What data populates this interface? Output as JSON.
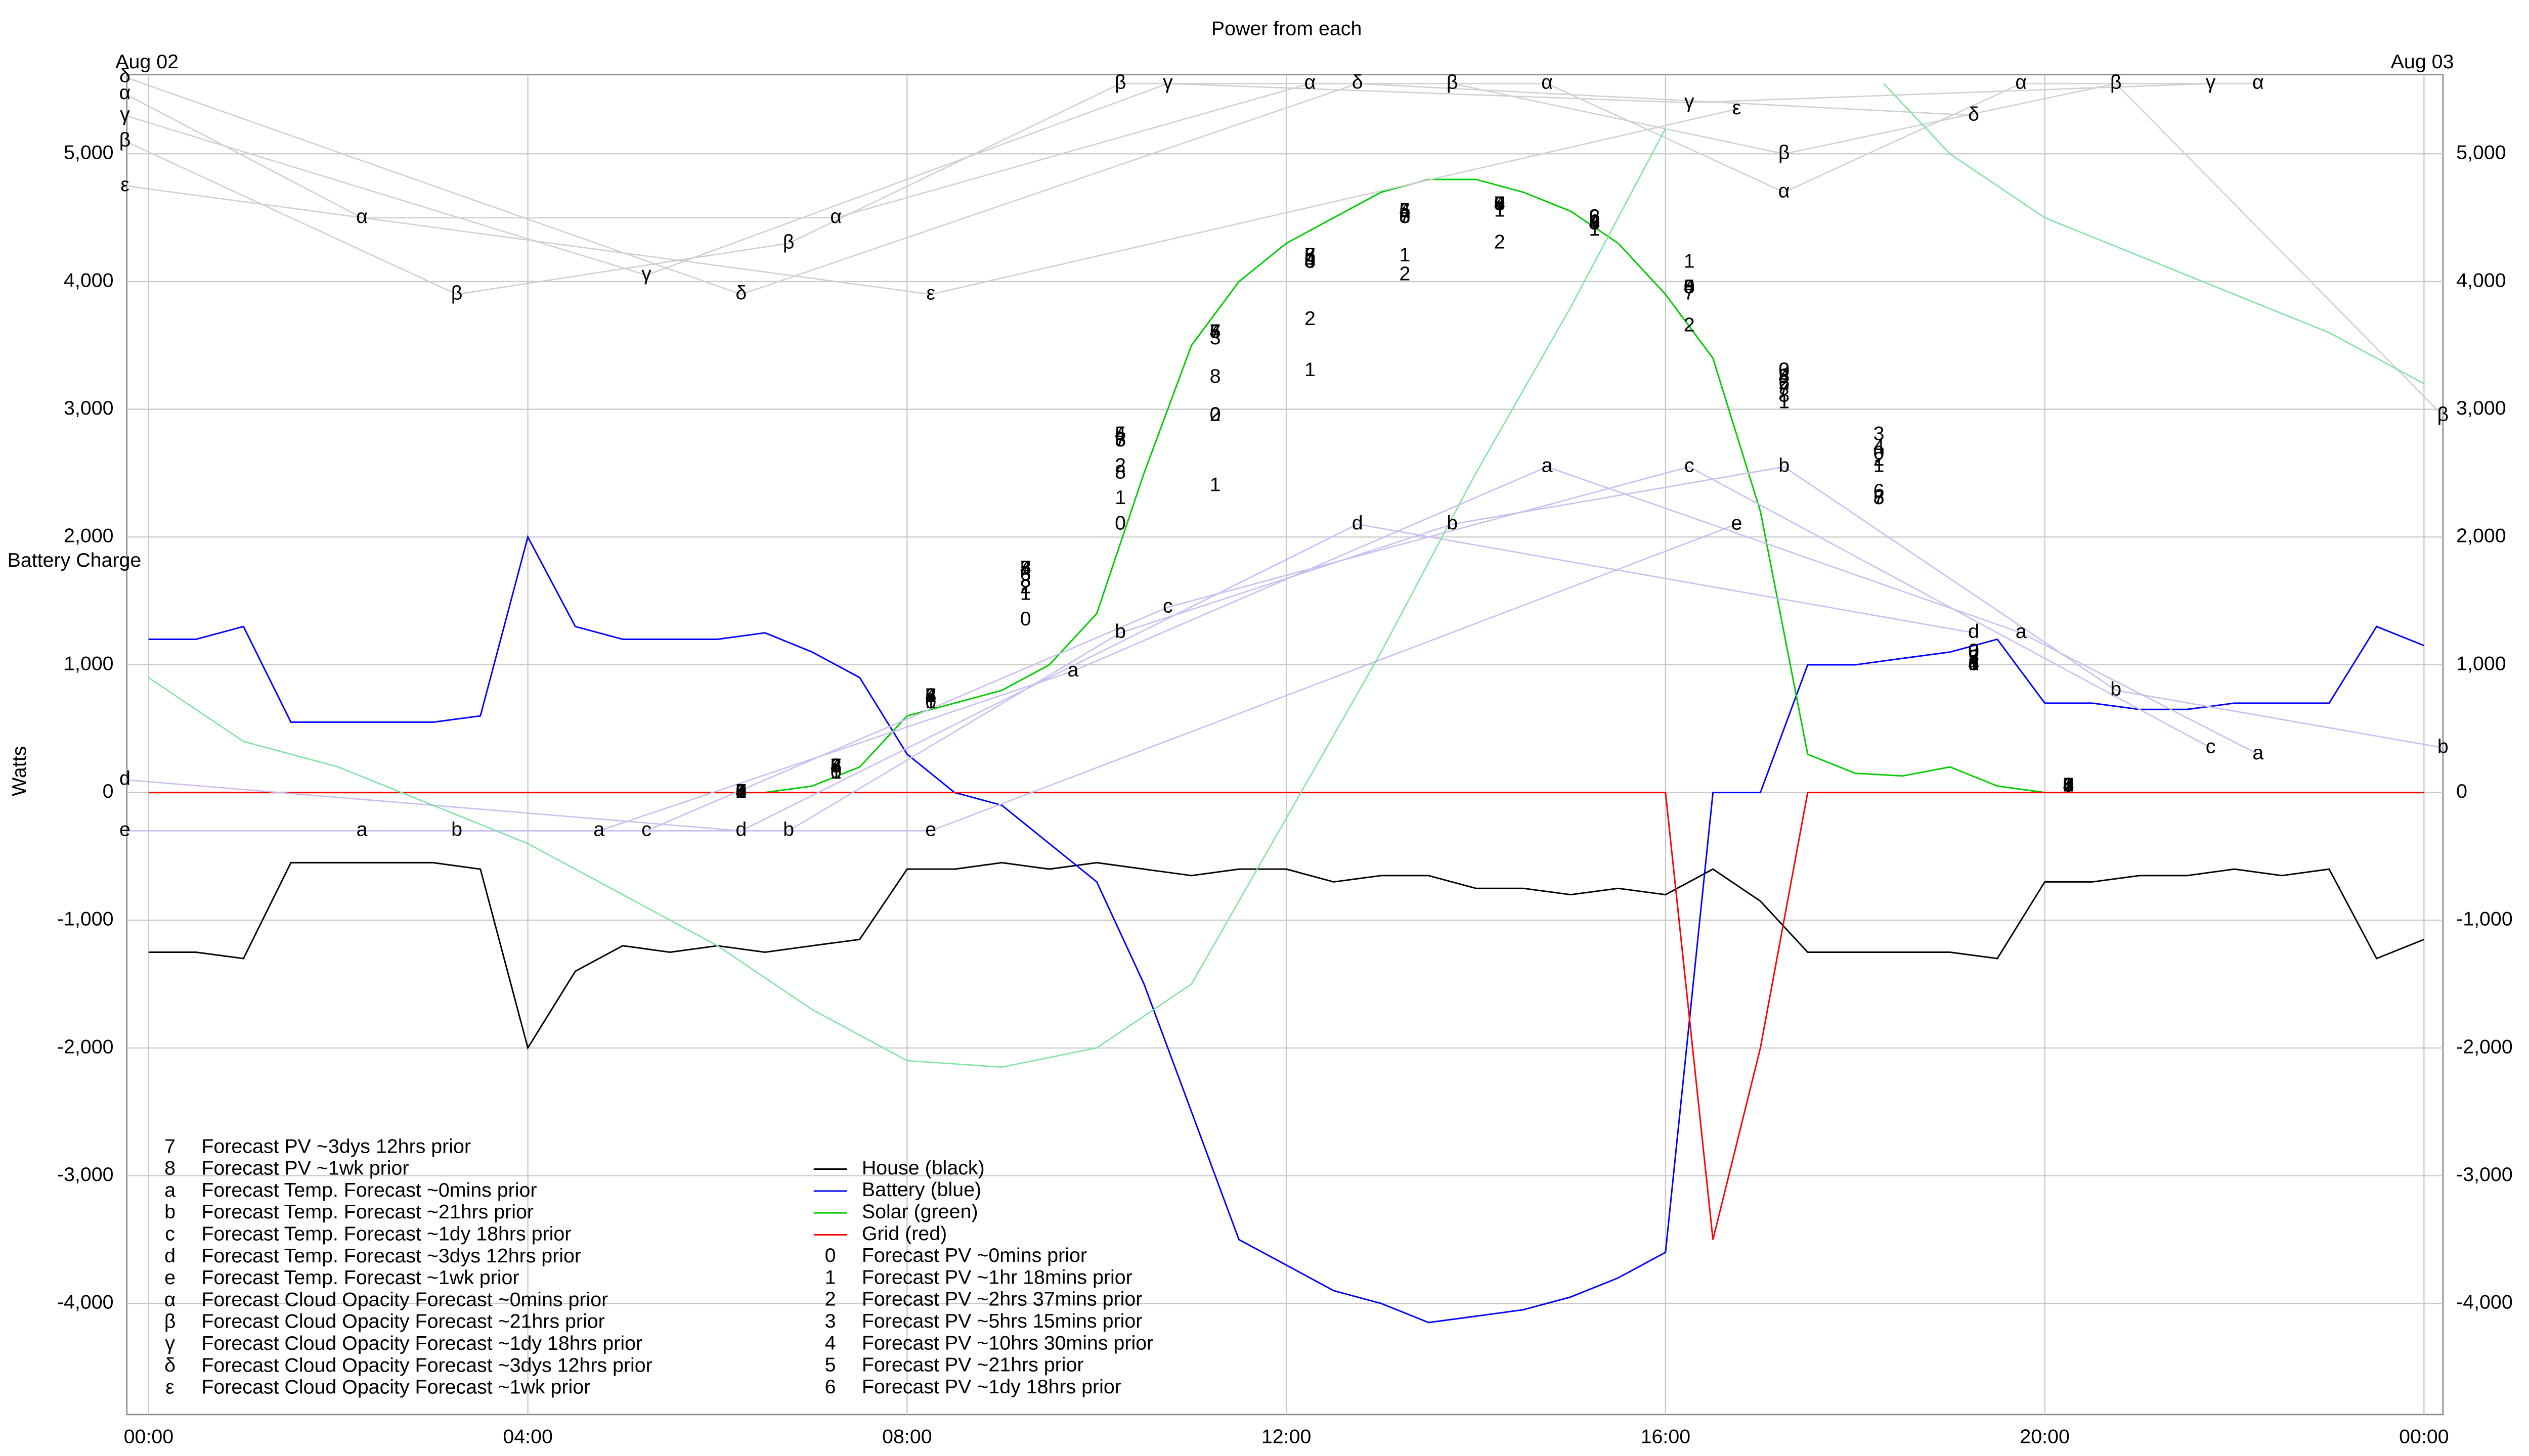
{
  "chart_data": {
    "type": "line",
    "title": "Power from each",
    "y_label": "Watts",
    "annotations": [
      {
        "text": "Aug 02",
        "x": 0
      },
      {
        "text": "Aug 03",
        "x": 24
      }
    ],
    "xlim": [
      -0.23,
      24.2
    ],
    "ylim": [
      -4870,
      5620
    ],
    "xticks": [
      {
        "value": 0,
        "label": "00:00"
      },
      {
        "value": 4,
        "label": "04:00"
      },
      {
        "value": 8,
        "label": "08:00"
      },
      {
        "value": 12,
        "label": "12:00"
      },
      {
        "value": 16,
        "label": "16:00"
      },
      {
        "value": 20,
        "label": "20:00"
      },
      {
        "value": 24,
        "label": "00:00"
      }
    ],
    "yticks": [
      {
        "value": -4000,
        "label": "-4,000"
      },
      {
        "value": -3000,
        "label": "-3,000"
      },
      {
        "value": -2000,
        "label": "-2,000"
      },
      {
        "value": -1000,
        "label": "-1,000"
      },
      0,
      {
        "value": 1000,
        "label": "1,000"
      },
      {
        "value": 2000,
        "label": "2,000"
      },
      {
        "value": 3000,
        "label": "3,000"
      },
      {
        "value": 4000,
        "label": "4,000"
      },
      {
        "value": 5000,
        "label": "5,000"
      }
    ],
    "grid": true,
    "x": [
      0,
      0.5,
      1,
      1.5,
      2,
      2.5,
      3,
      3.5,
      4,
      4.5,
      5,
      5.5,
      6,
      6.5,
      7,
      7.5,
      8,
      8.5,
      9,
      9.5,
      10,
      10.5,
      11,
      11.5,
      12,
      12.5,
      13,
      13.5,
      14,
      14.5,
      15,
      15.5,
      16,
      16.5,
      17,
      17.5,
      18,
      18.5,
      19,
      19.5,
      20,
      20.5,
      21,
      21.5,
      22,
      22.5,
      23,
      23.5,
      24
    ],
    "series": [
      {
        "name": "House (black)",
        "color": "#000000",
        "values": [
          -1250,
          -1250,
          -1300,
          -550,
          -550,
          -550,
          -550,
          -600,
          -2000,
          -1400,
          -1200,
          -1250,
          -1200,
          -1250,
          -1200,
          -1150,
          -600,
          -600,
          -550,
          -600,
          -550,
          -600,
          -650,
          -600,
          -600,
          -700,
          -650,
          -650,
          -750,
          -750,
          -800,
          -750,
          -800,
          -600,
          -850,
          -1250,
          -1250,
          -1250,
          -1250,
          -1300,
          -700,
          -700,
          -650,
          -650,
          -600,
          -650,
          -600,
          -1300,
          -1150
        ]
      },
      {
        "name": "Battery (blue)",
        "color": "#0000ff",
        "values": [
          1200,
          1200,
          1300,
          550,
          550,
          550,
          550,
          600,
          2000,
          1300,
          1200,
          1200,
          1200,
          1250,
          1100,
          900,
          300,
          0,
          -100,
          -400,
          -700,
          -1500,
          -2500,
          -3500,
          -3700,
          -3900,
          -4000,
          -4150,
          -4100,
          -4050,
          -3950,
          -3800,
          -3600,
          0,
          0,
          1000,
          1000,
          1050,
          1100,
          1200,
          700,
          700,
          650,
          650,
          700,
          700,
          700,
          1300,
          1150
        ]
      },
      {
        "name": "Solar (green)",
        "color": "#00cc00",
        "values": [
          0,
          0,
          0,
          0,
          0,
          0,
          0,
          0,
          0,
          0,
          0,
          0,
          0,
          0,
          50,
          200,
          600,
          700,
          800,
          1000,
          1400,
          2500,
          3500,
          4000,
          4300,
          4500,
          4700,
          4800,
          4800,
          4700,
          4550,
          4300,
          3900,
          3400,
          2200,
          300,
          150,
          130,
          200,
          50,
          0,
          0,
          0,
          0,
          0,
          0,
          0,
          0,
          0
        ]
      },
      {
        "name": "Grid (red)",
        "color": "#ff0000",
        "values": [
          0,
          0,
          0,
          0,
          0,
          0,
          0,
          0,
          0,
          0,
          0,
          0,
          0,
          0,
          0,
          0,
          0,
          0,
          0,
          0,
          0,
          0,
          0,
          0,
          0,
          0,
          0,
          0,
          0,
          0,
          0,
          0,
          0,
          -3500,
          -2000,
          0,
          0,
          0,
          0,
          0,
          0,
          0,
          0,
          0,
          0,
          0,
          0,
          0,
          0
        ]
      },
      {
        "name": "Forecast PV ~0mins prior",
        "marker": "0",
        "x": [
          6.25,
          7.25,
          8.25,
          9.25,
          10.25,
          11.25,
          12.25,
          13.25,
          14.25,
          15.25,
          16.25,
          17.25,
          18.25,
          19.25,
          20.25
        ],
        "values": [
          0,
          150,
          700,
          1350,
          2100,
          2950,
          4150,
          4500,
          4600,
          4450,
          3950,
          3300,
          2650,
          1100,
          50
        ]
      },
      {
        "name": "Forecast PV ~1hr 18mins prior",
        "marker": "1",
        "x": [
          6.25,
          7.25,
          8.25,
          9.25,
          10.25,
          11.25,
          12.25,
          13.25,
          14.25,
          15.25,
          16.25,
          17.25,
          18.25,
          19.25,
          20.25
        ],
        "values": [
          0,
          150,
          700,
          1550,
          2300,
          2400,
          3300,
          4200,
          4550,
          4400,
          4150,
          3050,
          2550,
          1000,
          50
        ]
      },
      {
        "name": "Forecast PV ~2hrs 37mins prior",
        "marker": "2",
        "x": [
          6.25,
          7.25,
          8.25,
          9.25,
          10.25,
          11.25,
          12.25,
          13.25,
          14.25,
          15.25,
          16.25,
          17.25,
          18.25,
          19.25,
          20.25
        ],
        "values": [
          0,
          200,
          750,
          1600,
          2550,
          2950,
          3700,
          4050,
          4300,
          4500,
          3650,
          3200,
          2600,
          1050,
          50
        ]
      },
      {
        "name": "Forecast PV ~5hrs 15mins prior",
        "marker": "3",
        "x": [
          6.25,
          7.25,
          8.25,
          9.25,
          10.25,
          11.25,
          12.25,
          13.25,
          14.25,
          15.25,
          16.25,
          17.25,
          18.25,
          19.25,
          20.25
        ],
        "values": [
          0,
          200,
          750,
          1750,
          2750,
          3550,
          4150,
          4500,
          4600,
          4450,
          3950,
          3300,
          2800,
          1100,
          50
        ]
      },
      {
        "name": "Forecast PV ~10hrs 30mins prior",
        "marker": "4",
        "x": [
          6.25,
          7.25,
          8.25,
          9.25,
          10.25,
          11.25,
          12.25,
          13.25,
          14.25,
          15.25,
          16.25,
          17.25,
          18.25,
          19.25,
          20.25
        ],
        "values": [
          0,
          200,
          750,
          1750,
          2800,
          3600,
          4150,
          4550,
          4600,
          4450,
          3950,
          3250,
          2700,
          1000,
          50
        ]
      },
      {
        "name": "Forecast PV ~21hrs prior",
        "marker": "5",
        "x": [
          6.25,
          7.25,
          8.25,
          9.25,
          10.25,
          11.25,
          12.25,
          13.25,
          14.25,
          15.25,
          16.25,
          17.25,
          18.25,
          19.25,
          20.25
        ],
        "values": [
          0,
          200,
          750,
          1750,
          2800,
          3600,
          4200,
          4550,
          4600,
          4450,
          3950,
          3250,
          2300,
          1050,
          50
        ]
      },
      {
        "name": "Forecast PV ~1dy 18hrs prior",
        "marker": "6",
        "x": [
          6.25,
          7.25,
          8.25,
          9.25,
          10.25,
          11.25,
          12.25,
          13.25,
          14.25,
          15.25,
          16.25,
          17.25,
          18.25,
          19.25,
          20.25
        ],
        "values": [
          0,
          200,
          750,
          1700,
          2750,
          3600,
          4200,
          4550,
          4600,
          4500,
          3950,
          3200,
          2350,
          1000,
          50
        ]
      },
      {
        "name": "Forecast PV ~3dys 12hrs prior",
        "marker": "7",
        "x": [
          6.25,
          7.25,
          8.25,
          9.25,
          10.25,
          11.25,
          12.25,
          13.25,
          14.25,
          15.25,
          16.25,
          17.25,
          18.25,
          19.25,
          20.25
        ],
        "values": [
          0,
          200,
          750,
          1750,
          2750,
          3600,
          4200,
          4500,
          4600,
          4450,
          3900,
          3150,
          2300,
          1050,
          50
        ]
      },
      {
        "name": "Forecast PV ~1wk prior",
        "marker": "8",
        "x": [
          6.25,
          7.25,
          8.25,
          9.25,
          10.25,
          11.25,
          12.25,
          13.25,
          14.25,
          15.25,
          16.25,
          17.25,
          18.25,
          19.25,
          20.25
        ],
        "values": [
          0,
          200,
          750,
          1650,
          2500,
          3250,
          4200,
          4500,
          4600,
          4450,
          3950,
          3100,
          2300,
          1000,
          50
        ]
      },
      {
        "name": "Forecast Temp. Forecast ~0mins prior",
        "marker": "a",
        "color": "#c9bdf2",
        "x": [
          2.25,
          4.75,
          9.75,
          14.75,
          19.75,
          22.25
        ],
        "values": [
          -300,
          -300,
          950,
          2550,
          1250,
          300
        ]
      },
      {
        "name": "Forecast Temp. Forecast ~21hrs prior",
        "marker": "b",
        "color": "#c9bdf2",
        "x": [
          3.25,
          6.75,
          10.25,
          13.75,
          17.25,
          20.75,
          24.2
        ],
        "values": [
          -300,
          -300,
          1250,
          2100,
          2550,
          800,
          350
        ]
      },
      {
        "name": "Forecast Temp. Forecast ~1dy 18hrs prior",
        "marker": "c",
        "color": "#c9bdf2",
        "x": [
          5.25,
          10.75,
          16.25,
          21.75
        ],
        "values": [
          -300,
          1450,
          2550,
          350
        ]
      },
      {
        "name": "Forecast Temp. Forecast ~3dys 12hrs prior",
        "marker": "d",
        "color": "#c9bdf2",
        "x": [
          -0.25,
          6.25,
          12.75,
          19.25
        ],
        "values": [
          100,
          -300,
          2100,
          1250
        ]
      },
      {
        "name": "Forecast Temp. Forecast ~1wk prior",
        "marker": "e",
        "color": "#c9bdf2",
        "x": [
          -0.25,
          8.25,
          16.75
        ],
        "values": [
          -300,
          -300,
          2100
        ]
      },
      {
        "name": "Forecast Cloud Opacity Forecast ~0mins prior",
        "marker": "α",
        "color": "#d0d0d0",
        "x": [
          -0.25,
          2.25,
          7.25,
          12.25,
          14.75,
          17.25,
          19.75,
          22.25
        ],
        "values": [
          5470,
          4500,
          4500,
          5550,
          5550,
          4700,
          5550,
          5550
        ]
      },
      {
        "name": "Forecast Cloud Opacity Forecast ~21hrs prior",
        "marker": "β",
        "color": "#d0d0d0",
        "x": [
          -0.25,
          3.25,
          6.75,
          10.25,
          13.75,
          17.25,
          20.75,
          24.2
        ],
        "values": [
          5100,
          3900,
          4300,
          5550,
          5550,
          5000,
          5550,
          2950
        ]
      },
      {
        "name": "Forecast Cloud Opacity Forecast ~1dy 18hrs prior",
        "marker": "γ",
        "color": "#d0d0d0",
        "x": [
          -0.25,
          5.25,
          10.75,
          16.25,
          21.75
        ],
        "values": [
          5300,
          4050,
          5550,
          5400,
          5550
        ]
      },
      {
        "name": "Forecast Cloud Opacity Forecast ~3dys 12hrs prior",
        "marker": "δ",
        "color": "#d0d0d0",
        "x": [
          -0.25,
          6.25,
          12.75,
          19.25
        ],
        "values": [
          5600,
          3900,
          5550,
          5300
        ]
      },
      {
        "name": "Forecast Cloud Opacity Forecast ~1wk prior",
        "marker": "ε",
        "color": "#d0d0d0",
        "x": [
          -0.25,
          8.25,
          16.75
        ],
        "values": [
          4750,
          3900,
          5350
        ]
      },
      {
        "name": "Battery Charge",
        "color": "#7fe3a0",
        "x": [
          0,
          1,
          2,
          3,
          4,
          5,
          6,
          7,
          8,
          9,
          10,
          11,
          12,
          13,
          14,
          15,
          16,
          16.5,
          18.3,
          19,
          20,
          21,
          22,
          23,
          24
        ],
        "values": [
          900,
          400,
          200,
          -100,
          -400,
          -800,
          -1200,
          -1700,
          -2100,
          -2150,
          -2000,
          -1500,
          -200,
          1100,
          2500,
          3800,
          5200,
          null,
          5550,
          5000,
          4500,
          4200,
          3900,
          3600,
          3200
        ]
      }
    ]
  }
}
